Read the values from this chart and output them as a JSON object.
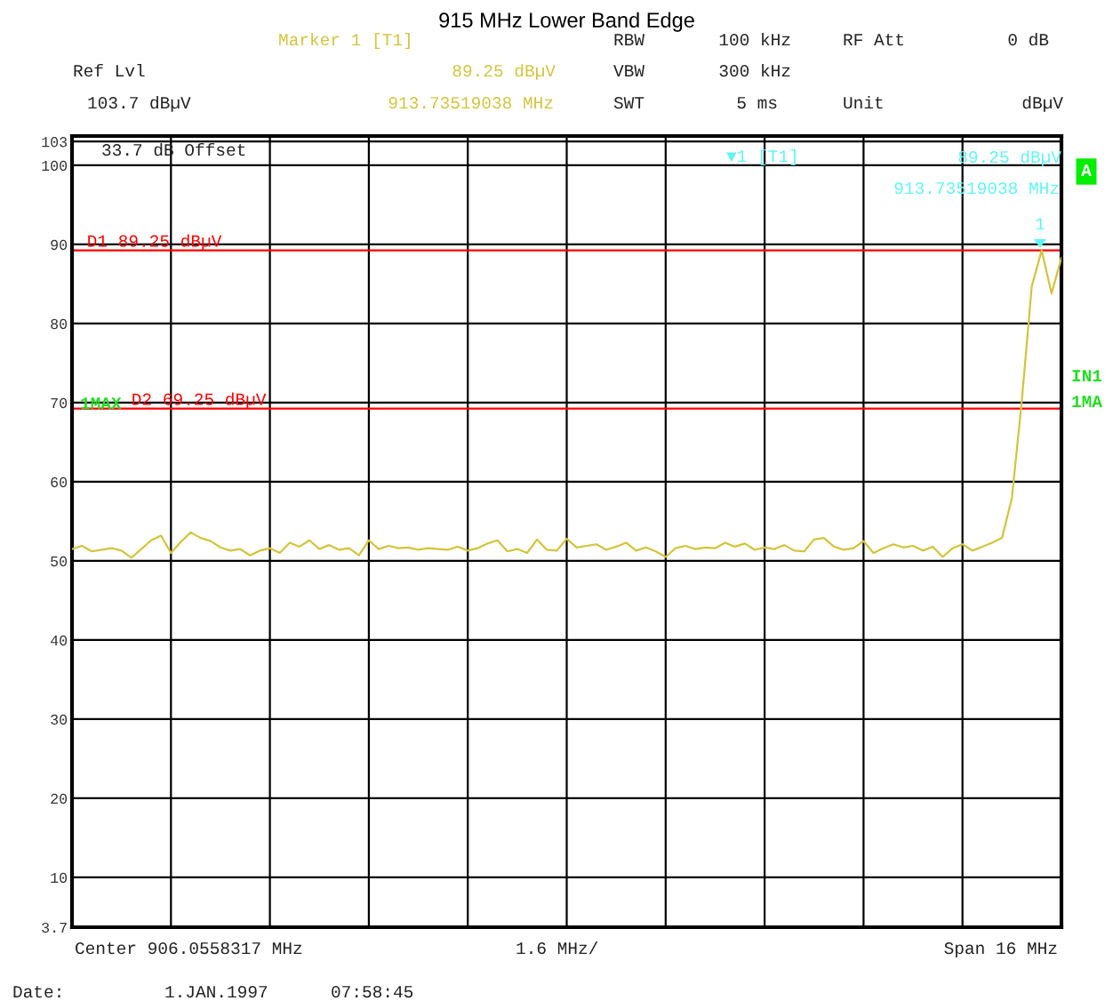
{
  "chart_data": {
    "type": "line",
    "title": "915 MHz Lower Band Edge",
    "categories": [
      null,
      null,
      null,
      null,
      null,
      null,
      null,
      null,
      null,
      null,
      null,
      null,
      null,
      null,
      null,
      null,
      null,
      null,
      null,
      null,
      null,
      null,
      null,
      null,
      null,
      null,
      null,
      null,
      null,
      null,
      null,
      null,
      null,
      null,
      null,
      null,
      null,
      null,
      null,
      null,
      null,
      null,
      null,
      null,
      null,
      null,
      null,
      null,
      null,
      null,
      null,
      null,
      null,
      null,
      null,
      null,
      null,
      null,
      null,
      null,
      null,
      null,
      null,
      null,
      null,
      null,
      null,
      null,
      null,
      null,
      null,
      null,
      null,
      null,
      null,
      null,
      null,
      null,
      null,
      null,
      null,
      null,
      null,
      null,
      null,
      null,
      null,
      null,
      null,
      null,
      null,
      null,
      null,
      null,
      null,
      null,
      null,
      null,
      null,
      null,
      null
    ],
    "series": [
      {
        "color": "#d4c43a",
        "values": [
          51.5,
          51.9,
          51.2,
          51.4,
          51.6,
          51.3,
          50.4,
          51.5,
          52.6,
          53.2,
          51.0,
          52.4,
          53.6,
          52.9,
          52.5,
          51.7,
          51.3,
          51.5,
          50.7,
          51.3,
          51.6,
          51.0,
          52.3,
          51.8,
          52.6,
          51.5,
          52.0,
          51.4,
          51.6,
          50.7,
          52.6,
          51.5,
          51.9,
          51.6,
          51.7,
          51.4,
          51.6,
          51.5,
          51.4,
          51.8,
          51.3,
          51.6,
          52.2,
          52.6,
          51.2,
          51.5,
          51.0,
          52.7,
          51.4,
          51.3,
          52.8,
          51.7,
          51.9,
          52.1,
          51.4,
          51.8,
          52.3,
          51.3,
          51.7,
          51.2,
          50.5,
          51.6,
          51.9,
          51.5,
          51.7,
          51.6,
          52.3,
          51.8,
          52.2,
          51.4,
          51.7,
          51.5,
          52.0,
          51.3,
          51.2,
          52.7,
          52.9,
          51.8,
          51.4,
          51.6,
          52.5,
          51.0,
          51.6,
          52.1,
          51.7,
          51.9,
          51.3,
          51.8,
          50.5,
          51.6,
          52.1,
          51.3,
          51.8,
          52.3,
          52.9,
          58.0,
          70.3,
          84.7,
          89.25,
          83.8,
          88.3
        ]
      }
    ],
    "ylim": [
      3.7,
      103.7
    ],
    "yticks": [
      3.7,
      10,
      20,
      30,
      40,
      50,
      60,
      70,
      80,
      90,
      100,
      103
    ],
    "tick_labels": "y",
    "grid": true,
    "ref_lines": [
      {
        "axis": "y",
        "value": 89.25,
        "label": "D1 89.25 dBµV",
        "color": "#ff0000"
      },
      {
        "axis": "y",
        "value": 69.25,
        "label": "D2 69.25 dBµV",
        "color": "#ff0000"
      }
    ],
    "annotations": [
      "Marker 1 [T1]",
      "89.25 dBµV",
      "913.73519038 MHz",
      "Ref Lvl",
      "103.7 dBµV",
      "RBW",
      "100 kHz",
      "RF Att",
      "0 dB",
      "VBW",
      "300 kHz",
      "SWT",
      "5 ms",
      "Unit",
      "dBµV",
      "33.7 dB Offset",
      "▼1 [T1]",
      "89.25 dBµV",
      "913.73519038 MHz",
      "A",
      "IN1",
      "1MA",
      "1MAX",
      "Center 906.0558317 MHz",
      "1.6 MHz/",
      "Span 16 MHz",
      "Date:",
      "1.JAN.1997",
      "07:58:45",
      "1"
    ]
  }
}
